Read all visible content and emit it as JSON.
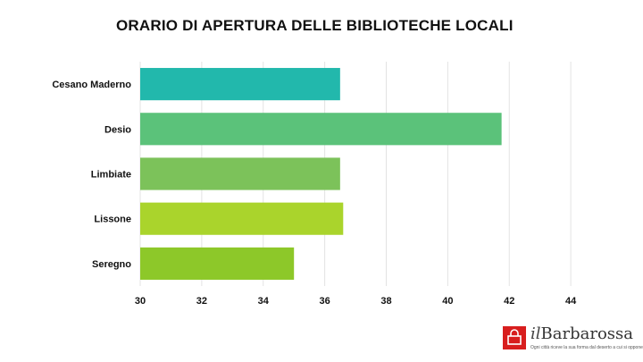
{
  "chart_data": {
    "type": "bar",
    "orientation": "horizontal",
    "title": "ORARIO DI APERTURA DELLE BIBLIOTECHE LOCALI",
    "categories": [
      "Cesano Maderno",
      "Desio",
      "Limbiate",
      "Lissone",
      "Seregno"
    ],
    "values": [
      36.5,
      41.75,
      36.5,
      36.6,
      35
    ],
    "colors": [
      "#22b8ac",
      "#5bc27a",
      "#7cc25a",
      "#aad42c",
      "#8dc829"
    ],
    "xlim": [
      30,
      46
    ],
    "xticks": [
      30,
      32,
      34,
      36,
      38,
      40,
      42,
      44
    ],
    "grid": true,
    "legend": "none"
  },
  "brand": {
    "name_prefix": "il",
    "name_main": "Barbarossa",
    "tagline": "Ogni città riceve la sua forma dal deserto a cui si oppone",
    "color": "#d81e1e"
  }
}
